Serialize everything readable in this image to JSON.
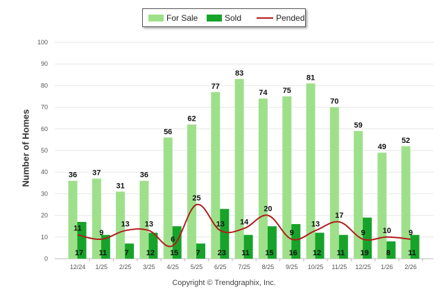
{
  "chart_data": {
    "type": "bar",
    "ylabel": "Number of Homes",
    "xlabel": "",
    "ylim": [
      0,
      100
    ],
    "yticks": [
      0,
      10,
      20,
      30,
      40,
      50,
      60,
      70,
      80,
      90,
      100
    ],
    "categories": [
      "12/24",
      "1/25",
      "2/25",
      "3/25",
      "4/25",
      "5/25",
      "6/25",
      "7/25",
      "8/25",
      "9/25",
      "10/25",
      "11/25",
      "12/25",
      "1/26",
      "2/26"
    ],
    "series": [
      {
        "name": "For Sale",
        "kind": "bar",
        "color": "#9ee08a",
        "values": [
          36,
          37,
          31,
          36,
          56,
          62,
          77,
          83,
          74,
          75,
          81,
          70,
          59,
          49,
          52
        ]
      },
      {
        "name": "Sold",
        "kind": "bar",
        "color": "#17a32a",
        "values": [
          17,
          11,
          7,
          12,
          15,
          7,
          23,
          11,
          15,
          16,
          12,
          11,
          19,
          8,
          11
        ]
      },
      {
        "name": "Pended",
        "kind": "line",
        "color": "#b01c1c",
        "values": [
          11,
          9,
          13,
          13,
          6,
          25,
          13,
          14,
          20,
          9,
          13,
          17,
          9,
          10,
          9
        ]
      }
    ],
    "legend": "top-center",
    "grid": true
  },
  "footer": {
    "copyright": "Copyright © Trendgraphix, Inc."
  }
}
